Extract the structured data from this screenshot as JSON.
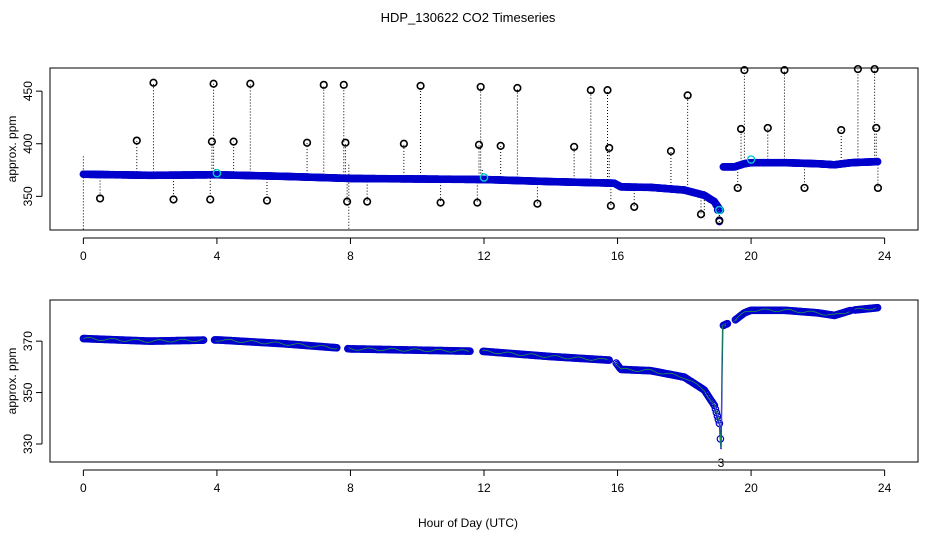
{
  "chart_data": {
    "title": "HDP_130622  CO2 Timeseries",
    "xlabel": "Hour of Day (UTC)",
    "colors": {
      "raw": "#000000",
      "filtered": "#0000cc",
      "smooth": "#22bb22",
      "flag": "#00cccc"
    },
    "panels": [
      {
        "type": "scatter",
        "ylabel": "approx. ppm",
        "xlim": [
          -1,
          25
        ],
        "ylim": [
          318,
          472
        ],
        "xticks": [
          "0",
          "4",
          "8",
          "12",
          "16",
          "20",
          "24"
        ],
        "xtick_values": [
          0,
          4,
          8,
          12,
          16,
          20,
          24
        ],
        "yticks": [
          "350",
          "400",
          "450"
        ],
        "ytick_values": [
          350,
          400,
          450
        ],
        "baseline": [
          [
            0,
            371
          ],
          [
            2,
            370
          ],
          [
            4,
            370.5
          ],
          [
            6,
            369
          ],
          [
            8,
            367
          ],
          [
            10,
            366.5
          ],
          [
            12,
            366
          ],
          [
            14,
            364
          ],
          [
            15.9,
            362.5
          ],
          [
            16.1,
            359
          ],
          [
            17,
            358.5
          ],
          [
            18,
            356
          ],
          [
            18.6,
            351
          ],
          [
            18.9,
            345
          ],
          [
            19.05,
            338
          ],
          [
            19.1,
            336
          ],
          [
            19.15,
            378
          ],
          [
            19.5,
            378
          ],
          [
            19.8,
            381
          ],
          [
            20,
            382
          ],
          [
            21,
            382
          ],
          [
            22,
            381
          ],
          [
            22.5,
            380
          ],
          [
            23,
            382
          ],
          [
            23.8,
            383
          ]
        ],
        "spikes": [
          [
            0.5,
            348
          ],
          [
            1.6,
            403
          ],
          [
            2.1,
            458
          ],
          [
            2.7,
            347
          ],
          [
            3.8,
            347
          ],
          [
            3.85,
            402
          ],
          [
            3.9,
            457
          ],
          [
            4.5,
            402
          ],
          [
            5.0,
            457
          ],
          [
            5.5,
            346
          ],
          [
            6.7,
            401
          ],
          [
            7.2,
            456
          ],
          [
            7.8,
            456
          ],
          [
            7.85,
            401
          ],
          [
            7.9,
            345
          ],
          [
            8.5,
            345
          ],
          [
            9.6,
            400
          ],
          [
            10.1,
            455
          ],
          [
            10.7,
            344
          ],
          [
            11.8,
            344
          ],
          [
            11.85,
            399
          ],
          [
            11.9,
            454
          ],
          [
            12.5,
            398
          ],
          [
            13.0,
            453
          ],
          [
            13.6,
            343
          ],
          [
            14.7,
            397
          ],
          [
            15.2,
            451
          ],
          [
            15.7,
            451
          ],
          [
            15.75,
            396
          ],
          [
            15.8,
            341
          ],
          [
            16.5,
            340
          ],
          [
            17.6,
            393
          ],
          [
            18.1,
            446
          ],
          [
            18.5,
            333
          ],
          [
            19.05,
            327
          ],
          [
            19.6,
            358
          ],
          [
            19.7,
            414
          ],
          [
            19.8,
            470
          ],
          [
            20.5,
            415
          ],
          [
            21.0,
            470
          ],
          [
            21.6,
            358
          ],
          [
            22.7,
            413
          ],
          [
            23.2,
            471
          ],
          [
            23.7,
            471
          ],
          [
            23.75,
            415
          ],
          [
            23.8,
            358
          ]
        ],
        "drops": [
          [
            0,
            388,
            318
          ],
          [
            3.95,
            376,
            368
          ],
          [
            7.95,
            380,
            318
          ],
          [
            11.95,
            375,
            366
          ],
          [
            18.6,
            355,
            329
          ],
          [
            19.05,
            335,
            325
          ]
        ],
        "flags": [
          [
            4,
            372
          ],
          [
            12,
            368
          ],
          [
            19.05,
            337
          ],
          [
            20,
            385
          ]
        ]
      },
      {
        "type": "line",
        "ylabel": "approx. ppm",
        "xlim": [
          -1,
          25
        ],
        "ylim": [
          323,
          386
        ],
        "xticks": [
          "0",
          "4",
          "8",
          "12",
          "16",
          "20",
          "24"
        ],
        "xtick_values": [
          0,
          4,
          8,
          12,
          16,
          20,
          24
        ],
        "yticks": [
          "330",
          "350",
          "370"
        ],
        "ytick_values": [
          330,
          350,
          370
        ],
        "baseline": [
          [
            0,
            371
          ],
          [
            2,
            370
          ],
          [
            4,
            370.5
          ],
          [
            6,
            369
          ],
          [
            8,
            367
          ],
          [
            10,
            366.5
          ],
          [
            12,
            366
          ],
          [
            14,
            364
          ],
          [
            15.9,
            362.5
          ],
          [
            16.1,
            359
          ],
          [
            17,
            358.5
          ],
          [
            18,
            356
          ],
          [
            18.6,
            351
          ],
          [
            18.9,
            345
          ],
          [
            19.05,
            338
          ],
          [
            19.1,
            328
          ],
          [
            19.15,
            376
          ],
          [
            19.5,
            378
          ],
          [
            19.8,
            381
          ],
          [
            20,
            382
          ],
          [
            21,
            382
          ],
          [
            22,
            381
          ],
          [
            22.5,
            380
          ],
          [
            23,
            382
          ],
          [
            23.8,
            383
          ]
        ],
        "gaps": [
          [
            3.6,
            3.9
          ],
          [
            7.6,
            7.9
          ],
          [
            11.6,
            11.95
          ],
          [
            15.75,
            15.95
          ],
          [
            19.3,
            19.5
          ],
          [
            23,
            23.1
          ]
        ],
        "annotation": {
          "text": "3",
          "x": 19.1,
          "y": 325
        }
      }
    ]
  }
}
